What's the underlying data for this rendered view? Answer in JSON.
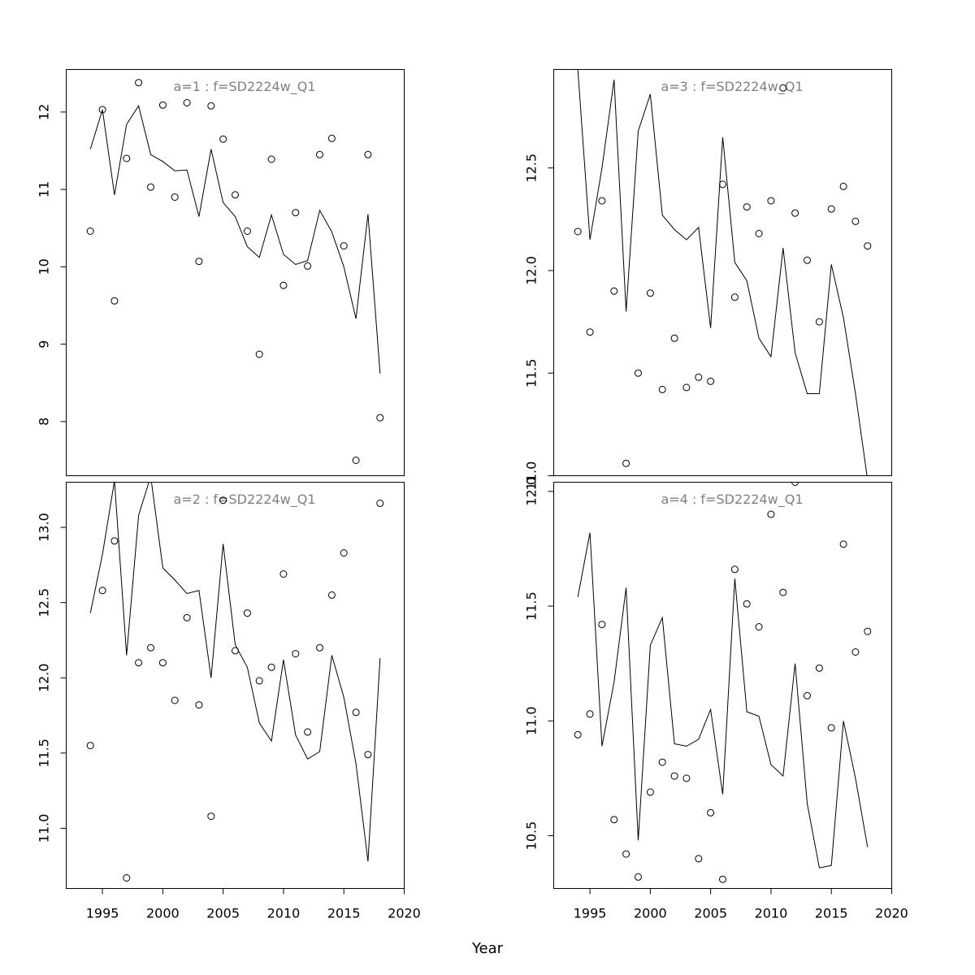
{
  "xlabel": "Year",
  "chart_data": [
    {
      "type": "scatter",
      "title": "a=1  :  f=SD2224w_Q1",
      "xlim": [
        1992,
        2020
      ],
      "ylim": [
        7.3,
        12.55
      ],
      "x_ticks": [
        1995,
        2000,
        2005,
        2010,
        2015,
        2020
      ],
      "y_ticks": [
        8,
        9,
        10,
        11,
        12
      ],
      "y_tick_labels": [
        "8",
        "9",
        "10",
        "11",
        "12"
      ],
      "x": [
        1994,
        1995,
        1996,
        1997,
        1998,
        1999,
        2000,
        2001,
        2002,
        2003,
        2004,
        2005,
        2006,
        2007,
        2008,
        2009,
        2010,
        2011,
        2012,
        2013,
        2014,
        2015,
        2016,
        2017,
        2018
      ],
      "series": [
        {
          "kind": "observed",
          "values": [
            10.46,
            12.03,
            9.56,
            11.4,
            12.38,
            11.03,
            12.09,
            10.9,
            12.12,
            10.07,
            12.08,
            11.65,
            10.93,
            10.46,
            8.87,
            11.39,
            9.76,
            10.7,
            10.01,
            11.45,
            11.66,
            10.27,
            7.5,
            11.45,
            8.05
          ]
        },
        {
          "kind": "fitted",
          "values": [
            11.52,
            12.03,
            10.93,
            11.84,
            12.08,
            11.45,
            11.36,
            11.24,
            11.25,
            10.65,
            11.52,
            10.83,
            10.65,
            10.26,
            10.12,
            10.67,
            10.16,
            10.03,
            10.08,
            10.73,
            10.45,
            10.0,
            9.33,
            10.68,
            8.62
          ]
        }
      ]
    },
    {
      "type": "scatter",
      "title": "a=3  :  f=SD2224w_Q1",
      "xlim": [
        1992,
        2020
      ],
      "ylim": [
        11.0,
        12.98
      ],
      "x_ticks": [
        1995,
        2000,
        2005,
        2010,
        2015,
        2020
      ],
      "y_ticks": [
        11.0,
        11.5,
        12.0,
        12.5
      ],
      "y_tick_labels": [
        "11.0",
        "11.5",
        "12.0",
        "12.5"
      ],
      "x": [
        1994,
        1995,
        1996,
        1997,
        1998,
        1999,
        2000,
        2001,
        2002,
        2003,
        2004,
        2005,
        2006,
        2007,
        2008,
        2009,
        2010,
        2011,
        2012,
        2013,
        2014,
        2015,
        2016,
        2017,
        2018
      ],
      "series": [
        {
          "kind": "observed",
          "values": [
            12.19,
            11.7,
            12.34,
            11.9,
            11.06,
            11.5,
            11.89,
            11.42,
            11.67,
            11.43,
            11.48,
            11.46,
            12.42,
            11.87,
            12.31,
            12.18,
            12.34,
            12.89,
            12.28,
            12.05,
            11.75,
            12.3,
            12.41,
            12.24,
            12.12
          ]
        },
        {
          "kind": "fitted",
          "values": [
            12.98,
            12.15,
            12.5,
            12.93,
            11.8,
            12.68,
            12.86,
            12.27,
            12.2,
            12.15,
            12.21,
            11.72,
            12.65,
            12.04,
            11.95,
            11.67,
            11.58,
            12.11,
            11.6,
            11.4,
            11.4,
            12.03,
            11.77,
            11.4,
            10.98
          ]
        }
      ]
    },
    {
      "type": "scatter",
      "title": "a=2  :  f=SD2224w_Q1",
      "xlim": [
        1992,
        2020
      ],
      "ylim": [
        10.6,
        13.3
      ],
      "x_ticks": [
        1995,
        2000,
        2005,
        2010,
        2015,
        2020
      ],
      "y_ticks": [
        11.0,
        11.5,
        12.0,
        12.5,
        13.0
      ],
      "y_tick_labels": [
        "11.0",
        "11.5",
        "12.0",
        "12.5",
        "13.0"
      ],
      "x": [
        1994,
        1995,
        1996,
        1997,
        1998,
        1999,
        2000,
        2001,
        2002,
        2003,
        2004,
        2005,
        2006,
        2007,
        2008,
        2009,
        2010,
        2011,
        2012,
        2013,
        2014,
        2015,
        2016,
        2017,
        2018
      ],
      "series": [
        {
          "kind": "observed",
          "values": [
            11.55,
            12.58,
            12.91,
            10.67,
            12.1,
            12.2,
            12.1,
            11.85,
            12.4,
            11.82,
            11.08,
            13.18,
            12.18,
            12.43,
            11.98,
            12.07,
            12.69,
            12.16,
            11.64,
            12.2,
            12.55,
            12.83,
            11.77,
            11.49,
            13.16
          ]
        },
        {
          "kind": "fitted",
          "values": [
            12.43,
            12.82,
            13.31,
            12.15,
            13.08,
            13.34,
            12.73,
            12.65,
            12.56,
            12.58,
            12.0,
            12.89,
            12.22,
            12.07,
            11.7,
            11.58,
            12.12,
            11.62,
            11.46,
            11.51,
            12.15,
            11.87,
            11.43,
            10.78,
            12.13
          ]
        }
      ]
    },
    {
      "type": "scatter",
      "title": "a=4  :  f=SD2224w_Q1",
      "xlim": [
        1992,
        2020
      ],
      "ylim": [
        10.27,
        12.04
      ],
      "x_ticks": [
        1995,
        2000,
        2005,
        2010,
        2015,
        2020
      ],
      "y_ticks": [
        10.5,
        11.0,
        11.5,
        12.0
      ],
      "y_tick_labels": [
        "10.5",
        "11.0",
        "11.5",
        "12.0"
      ],
      "x": [
        1994,
        1995,
        1996,
        1997,
        1998,
        1999,
        2000,
        2001,
        2002,
        2003,
        2004,
        2005,
        2006,
        2007,
        2008,
        2009,
        2010,
        2011,
        2012,
        2013,
        2014,
        2015,
        2016,
        2017,
        2018
      ],
      "series": [
        {
          "kind": "observed",
          "values": [
            10.94,
            11.03,
            11.42,
            10.57,
            10.42,
            10.32,
            10.69,
            10.82,
            10.76,
            10.75,
            10.4,
            10.6,
            10.31,
            11.66,
            11.51,
            11.41,
            11.9,
            11.56,
            12.04,
            11.11,
            11.23,
            10.97,
            11.77,
            11.3,
            11.39
          ]
        },
        {
          "kind": "fitted",
          "values": [
            11.54,
            11.82,
            10.89,
            11.17,
            11.58,
            10.48,
            11.33,
            11.45,
            10.9,
            10.89,
            10.92,
            11.05,
            10.68,
            11.62,
            11.04,
            11.02,
            10.81,
            10.76,
            11.25,
            10.64,
            10.36,
            10.37,
            11.0,
            10.75,
            10.45
          ]
        }
      ]
    }
  ]
}
